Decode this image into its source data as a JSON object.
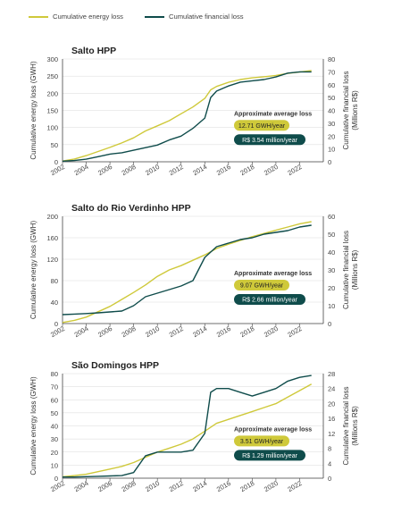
{
  "colors": {
    "energy": "#cfc93a",
    "financial": "#0f4c4b",
    "axis": "#444444",
    "grid": "#d9d9d9"
  },
  "legend": {
    "energy_label": "Cumulative energy loss",
    "financial_label": "Cumulative financial loss"
  },
  "chart_data": [
    {
      "type": "line",
      "title": "Salto HPP",
      "ylabel": "Cumulative energy loss (GWH)",
      "ylabel2": "Cumulative financial loss (Millions R$)",
      "xlim": [
        2002,
        2024
      ],
      "xticks": [
        "2002",
        "2004",
        "2006",
        "2008",
        "2010",
        "2012",
        "2014",
        "2016",
        "2018",
        "2020",
        "2022"
      ],
      "ylim": [
        0,
        300
      ],
      "yticks": [
        "0",
        "50",
        "100",
        "150",
        "200",
        "250",
        "300"
      ],
      "y2lim": [
        0,
        80
      ],
      "y2ticks": [
        "0",
        "10",
        "20",
        "30",
        "40",
        "50",
        "60",
        "70",
        "80"
      ],
      "annotation": {
        "title": "Approximate average loss",
        "energy": "12.71 GWH/year",
        "financial": "R$ 3.54 million/year"
      },
      "series": [
        {
          "name": "Cumulative energy loss",
          "axis": "left",
          "x": [
            2002,
            2003,
            2004,
            2005,
            2006,
            2007,
            2008,
            2009,
            2010,
            2011,
            2012,
            2013,
            2014,
            2014.5,
            2015,
            2016,
            2017,
            2018,
            2019,
            2020,
            2021,
            2022,
            2023
          ],
          "y": [
            2,
            8,
            18,
            30,
            42,
            55,
            70,
            90,
            105,
            120,
            140,
            160,
            185,
            210,
            220,
            232,
            240,
            245,
            248,
            252,
            258,
            262,
            266
          ]
        },
        {
          "name": "Cumulative financial loss",
          "axis": "right",
          "x": [
            2002,
            2003,
            2004,
            2005,
            2006,
            2007,
            2008,
            2009,
            2010,
            2011,
            2012,
            2013,
            2014,
            2014.5,
            2015,
            2016,
            2017,
            2018,
            2019,
            2020,
            2021,
            2022,
            2023
          ],
          "y": [
            0.5,
            1,
            2,
            4,
            6,
            7,
            9,
            11,
            13,
            17,
            20,
            26,
            34,
            50,
            55,
            59,
            62,
            63,
            64,
            66,
            69,
            70,
            70
          ]
        }
      ]
    },
    {
      "type": "line",
      "title": "Salto do Rio Verdinho HPP",
      "ylabel": "Cumulative energy loss (GWH)",
      "ylabel2": "Cumulative financial loss (Millions R$)",
      "xlim": [
        2002,
        2024
      ],
      "xticks": [
        "2002",
        "2004",
        "2006",
        "2008",
        "2010",
        "2012",
        "2014",
        "2016",
        "2018",
        "2020",
        "2022"
      ],
      "ylim": [
        0,
        200
      ],
      "yticks": [
        "0",
        "40",
        "80",
        "120",
        "160",
        "200"
      ],
      "y2lim": [
        0,
        60
      ],
      "y2ticks": [
        "0",
        "10",
        "20",
        "30",
        "40",
        "50",
        "60"
      ],
      "annotation": {
        "title": "Approximate average loss",
        "energy": "9.07 GWH/year",
        "financial": "R$ 2.66 million/year"
      },
      "series": [
        {
          "name": "Cumulative energy loss",
          "axis": "left",
          "x": [
            2002,
            2003,
            2004,
            2005,
            2006,
            2007,
            2008,
            2009,
            2010,
            2011,
            2012,
            2013,
            2014,
            2015,
            2016,
            2017,
            2018,
            2019,
            2020,
            2021,
            2022,
            2023
          ],
          "y": [
            2,
            6,
            12,
            22,
            32,
            45,
            58,
            72,
            88,
            100,
            108,
            118,
            128,
            140,
            148,
            155,
            162,
            168,
            174,
            180,
            186,
            190
          ]
        },
        {
          "name": "Cumulative financial loss",
          "axis": "right",
          "x": [
            2002,
            2003,
            2004,
            2005,
            2006,
            2007,
            2008,
            2009,
            2010,
            2011,
            2012,
            2013,
            2014,
            2015,
            2016,
            2017,
            2018,
            2019,
            2020,
            2021,
            2022,
            2023
          ],
          "y": [
            5,
            5.3,
            5.6,
            6,
            6.5,
            7,
            10,
            15,
            17,
            19,
            21,
            24,
            37,
            43,
            45,
            47,
            48,
            50,
            51,
            52,
            54,
            55
          ]
        }
      ]
    },
    {
      "type": "line",
      "title": "São Domingos HPP",
      "ylabel": "Cumulative energy loss (GWH)",
      "ylabel2": "Cumulative financial loss (Millions R$)",
      "xlim": [
        2002,
        2024
      ],
      "xticks": [
        "2002",
        "2004",
        "2006",
        "2008",
        "2010",
        "2012",
        "2014",
        "2016",
        "2018",
        "2020",
        "2022"
      ],
      "ylim": [
        0,
        80
      ],
      "yticks": [
        "0",
        "10",
        "20",
        "30",
        "40",
        "50",
        "60",
        "70",
        "80"
      ],
      "y2lim": [
        0,
        28
      ],
      "y2ticks": [
        "0",
        "4",
        "8",
        "12",
        "16",
        "20",
        "24",
        "28"
      ],
      "annotation": {
        "title": "Approximate average loss",
        "energy": "3.51 GWH/year",
        "financial": "R$ 1.29 million/year"
      },
      "series": [
        {
          "name": "Cumulative energy loss",
          "axis": "left",
          "x": [
            2002,
            2003,
            2004,
            2005,
            2006,
            2007,
            2008,
            2009,
            2010,
            2011,
            2012,
            2013,
            2014,
            2015,
            2016,
            2017,
            2018,
            2019,
            2020,
            2021,
            2022,
            2023
          ],
          "y": [
            1,
            2,
            3,
            5,
            7,
            9,
            12,
            16,
            20,
            23,
            26,
            30,
            36,
            42,
            45,
            48,
            51,
            54,
            57,
            62,
            67,
            72
          ]
        },
        {
          "name": "Cumulative financial loss",
          "axis": "right",
          "x": [
            2002,
            2003,
            2004,
            2005,
            2006,
            2007,
            2008,
            2009,
            2010,
            2011,
            2012,
            2013,
            2014,
            2014.5,
            2015,
            2016,
            2017,
            2018,
            2019,
            2020,
            2021,
            2022,
            2023
          ],
          "y": [
            0.3,
            0.3,
            0.4,
            0.5,
            0.6,
            0.7,
            1.5,
            6,
            7,
            7,
            7,
            7.5,
            12,
            23,
            24,
            24,
            23,
            22,
            23,
            24,
            26,
            27,
            27.5
          ]
        }
      ]
    }
  ]
}
